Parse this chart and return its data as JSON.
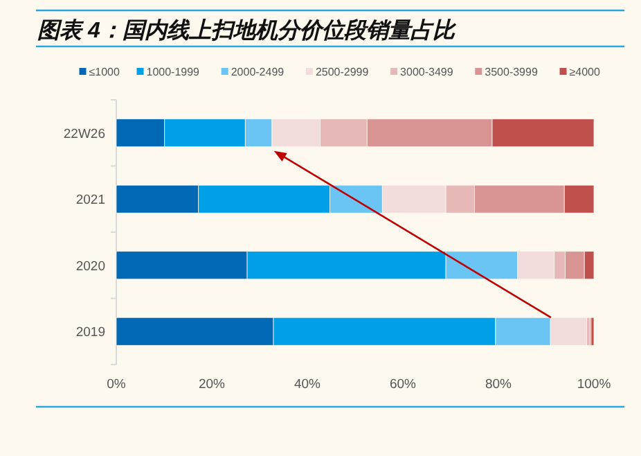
{
  "chart_data": {
    "type": "bar",
    "orientation": "horizontal",
    "stacked": true,
    "title": "图表 4：国内线上扫地机分价位段销量占比",
    "categories": [
      "22W26",
      "2021",
      "2020",
      "2019"
    ],
    "series": [
      {
        "name": "≤1000",
        "color": "#0068b4",
        "values": [
          10.1,
          17.2,
          27.4,
          32.9
        ]
      },
      {
        "name": "1000-1999",
        "color": "#00a0e9",
        "values": [
          16.9,
          27.5,
          41.6,
          46.5
        ]
      },
      {
        "name": "2000-2499",
        "color": "#6ac5f5",
        "values": [
          5.6,
          11.0,
          15.0,
          11.5
        ]
      },
      {
        "name": "2500-2999",
        "color": "#f2dcdc",
        "values": [
          10.1,
          13.3,
          7.7,
          7.6
        ]
      },
      {
        "name": "3000-3499",
        "color": "#e6b8b7",
        "values": [
          9.8,
          6.0,
          2.3,
          0.6
        ]
      },
      {
        "name": "3500-3999",
        "color": "#d99594",
        "values": [
          26.2,
          18.8,
          4.0,
          0.3
        ]
      },
      {
        "name": "≥4000",
        "color": "#c0504d",
        "values": [
          21.3,
          6.2,
          2.0,
          0.6
        ]
      }
    ],
    "xlim": [
      0,
      100
    ],
    "xticks": [
      {
        "value": 0,
        "label": "0%"
      },
      {
        "value": 20,
        "label": "20%"
      },
      {
        "value": 40,
        "label": "40%"
      },
      {
        "value": 60,
        "label": "60%"
      },
      {
        "value": 80,
        "label": "80%"
      },
      {
        "value": 100,
        "label": "100%"
      }
    ],
    "legend": "top",
    "grid": false
  }
}
